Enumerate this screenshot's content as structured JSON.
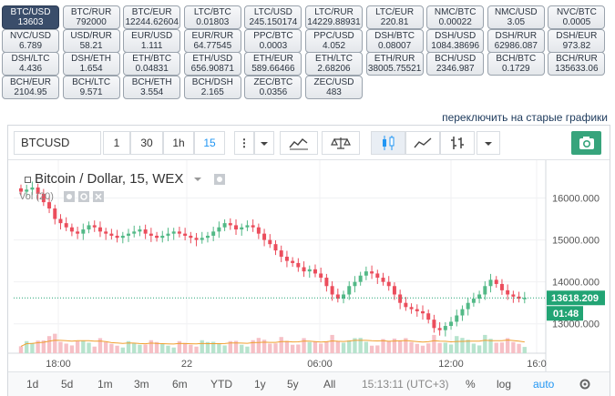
{
  "tickers": [
    {
      "name": "BTC/USD",
      "value": "13603",
      "active": true
    },
    {
      "name": "BTC/RUR",
      "value": "792000"
    },
    {
      "name": "BTC/EUR",
      "value": "12244.62604"
    },
    {
      "name": "LTC/BTC",
      "value": "0.01803"
    },
    {
      "name": "LTC/USD",
      "value": "245.150174"
    },
    {
      "name": "LTC/RUR",
      "value": "14229.88931"
    },
    {
      "name": "LTC/EUR",
      "value": "220.81"
    },
    {
      "name": "NMC/BTC",
      "value": "0.00022"
    },
    {
      "name": "NMC/USD",
      "value": "3.05"
    },
    {
      "name": "NVC/BTC",
      "value": "0.0005"
    },
    {
      "name": "NVC/USD",
      "value": "6.789"
    },
    {
      "name": "USD/RUR",
      "value": "58.21"
    },
    {
      "name": "EUR/USD",
      "value": "1.111"
    },
    {
      "name": "EUR/RUR",
      "value": "64.77545"
    },
    {
      "name": "PPC/BTC",
      "value": "0.0003"
    },
    {
      "name": "PPC/USD",
      "value": "4.052"
    },
    {
      "name": "DSH/BTC",
      "value": "0.08007"
    },
    {
      "name": "DSH/USD",
      "value": "1084.38696"
    },
    {
      "name": "DSH/RUR",
      "value": "62986.087"
    },
    {
      "name": "DSH/EUR",
      "value": "973.82"
    },
    {
      "name": "DSH/LTC",
      "value": "4.436"
    },
    {
      "name": "DSH/ETH",
      "value": "1.654"
    },
    {
      "name": "ETH/BTC",
      "value": "0.04831"
    },
    {
      "name": "ETH/USD",
      "value": "656.90871"
    },
    {
      "name": "ETH/EUR",
      "value": "589.66466"
    },
    {
      "name": "ETH/LTC",
      "value": "2.68206"
    },
    {
      "name": "ETH/RUR",
      "value": "38005.75521"
    },
    {
      "name": "BCH/USD",
      "value": "2346.987"
    },
    {
      "name": "BCH/BTC",
      "value": "0.1729"
    },
    {
      "name": "BCH/RUR",
      "value": "135633.06"
    },
    {
      "name": "BCH/EUR",
      "value": "2104.95"
    },
    {
      "name": "BCH/LTC",
      "value": "9.571"
    },
    {
      "name": "BCH/ETH",
      "value": "3.554"
    },
    {
      "name": "BCH/DSH",
      "value": "2.165"
    },
    {
      "name": "ZEC/BTC",
      "value": "0.0356"
    },
    {
      "name": "ZEC/USD",
      "value": "483"
    }
  ],
  "switch_link": "переключить на старые графики",
  "toolbar": {
    "symbol": "BTCUSD",
    "intervals": [
      "1",
      "30",
      "1h",
      "15"
    ],
    "selected_interval": "15",
    "more": "⋮"
  },
  "legend": {
    "title": "Bitcoin / Dollar, 15, WEX",
    "volume_label": "Vol (20)"
  },
  "colors": {
    "up": "#53b987",
    "down": "#eb4d5c",
    "last_price_bg": "#22a474",
    "accent": "#2196f3",
    "ma_line": "#f0a030"
  },
  "chart_data": {
    "type": "candlestick",
    "title": "Bitcoin / Dollar, 15, WEX",
    "y_ticks": [
      16000,
      15000,
      14000,
      13000
    ],
    "y_tick_labels": [
      "16000.000",
      "15000.000",
      "14000.000",
      "13000.000"
    ],
    "ylim": [
      12300,
      16900
    ],
    "x_ticks": [
      "18:00",
      "22",
      "06:00",
      "12:00",
      "16:0"
    ],
    "last_price": 13618.209,
    "last_price_label": "13618.209",
    "countdown": "01:48",
    "close_series": [
      16150,
      16200,
      16250,
      16100,
      15900,
      15750,
      15500,
      15400,
      15300,
      15200,
      15150,
      15250,
      15350,
      15300,
      15200,
      15150,
      15100,
      15050,
      15100,
      15150,
      15200,
      15250,
      15150,
      15100,
      15050,
      15100,
      15150,
      15200,
      15150,
      15100,
      15050,
      15000,
      15050,
      15100,
      15200,
      15300,
      15400,
      15350,
      15250,
      15300,
      15350,
      15300,
      15150,
      15000,
      14900,
      14750,
      14600,
      14500,
      14450,
      14350,
      14250,
      14300,
      14200,
      14100,
      13900,
      13700,
      13600,
      13700,
      13900,
      14000,
      14150,
      14250,
      14200,
      14100,
      14000,
      13900,
      13700,
      13500,
      13400,
      13350,
      13300,
      13250,
      13100,
      12900,
      12850,
      12950,
      13050,
      13200,
      13350,
      13500,
      13600,
      13700,
      13900,
      14050,
      13950,
      13800,
      13700,
      13650,
      13600,
      13620
    ]
  },
  "range_bar": {
    "ranges": [
      "1d",
      "5d",
      "1m",
      "3m",
      "6m",
      "YTD",
      "1y",
      "5y",
      "All"
    ],
    "time": "15:13:11 (UTC+3)",
    "percent": "%",
    "log": "log",
    "auto": "auto"
  }
}
